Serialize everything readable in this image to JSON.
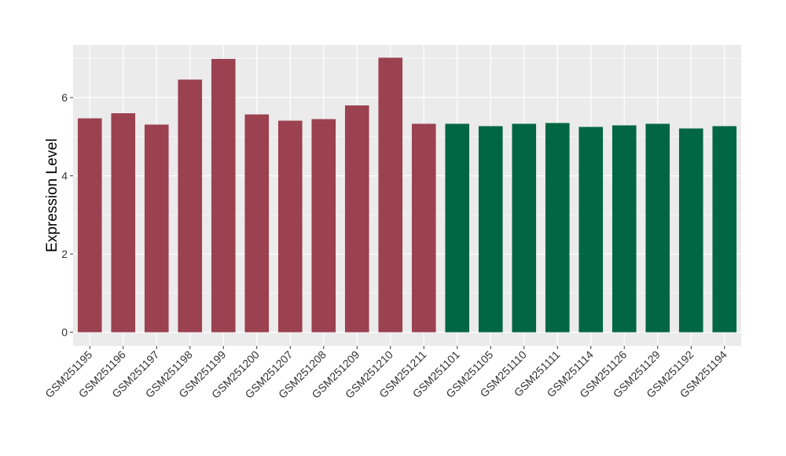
{
  "chart_data": {
    "type": "bar",
    "title": "",
    "xlabel": "",
    "ylabel": "Expression Level",
    "ylim": [
      -0.35,
      7.35
    ],
    "yticks": [
      0,
      2,
      4,
      6
    ],
    "grid": true,
    "legend": "none",
    "colors": {
      "group1": "#9B4150",
      "group2": "#006643",
      "panel_bg": "#EBEBEB",
      "grid": "#FFFFFF"
    },
    "categories": [
      "GSM251195",
      "GSM251196",
      "GSM251197",
      "GSM251198",
      "GSM251199",
      "GSM251200",
      "GSM251207",
      "GSM251208",
      "GSM251209",
      "GSM251210",
      "GSM251211",
      "GSM251101",
      "GSM251105",
      "GSM251110",
      "GSM251111",
      "GSM251114",
      "GSM251126",
      "GSM251129",
      "GSM251192",
      "GSM251194"
    ],
    "values": [
      5.47,
      5.6,
      5.31,
      6.46,
      6.99,
      5.57,
      5.41,
      5.45,
      5.8,
      7.02,
      5.33,
      5.33,
      5.27,
      5.33,
      5.35,
      5.25,
      5.29,
      5.33,
      5.21,
      5.27
    ],
    "groups": [
      "group1",
      "group1",
      "group1",
      "group1",
      "group1",
      "group1",
      "group1",
      "group1",
      "group1",
      "group1",
      "group1",
      "group2",
      "group2",
      "group2",
      "group2",
      "group2",
      "group2",
      "group2",
      "group2",
      "group2"
    ]
  }
}
